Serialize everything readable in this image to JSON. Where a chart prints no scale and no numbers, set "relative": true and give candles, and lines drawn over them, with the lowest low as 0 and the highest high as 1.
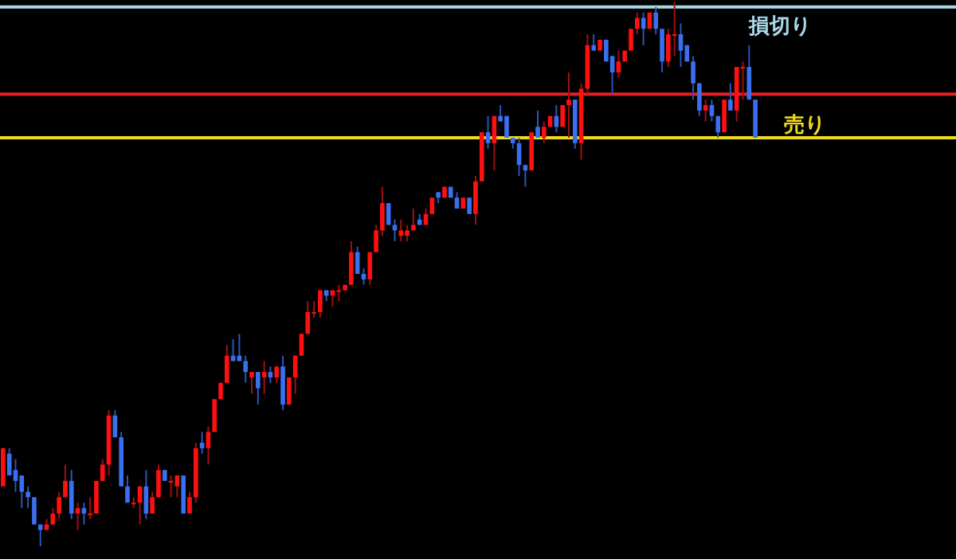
{
  "chart_data": {
    "type": "candlestick",
    "relative": true,
    "categories": [
      null,
      null,
      null,
      null,
      null,
      null,
      null,
      null,
      null,
      null,
      null,
      null,
      null,
      null,
      null,
      null,
      null,
      null,
      null,
      null,
      null,
      null,
      null,
      null,
      null,
      null,
      null,
      null,
      null,
      null,
      null,
      null,
      null,
      null,
      null,
      null,
      null,
      null,
      null,
      null,
      null,
      null,
      null,
      null,
      null,
      null,
      null,
      null,
      null,
      null,
      null,
      null,
      null,
      null,
      null,
      null,
      null,
      null,
      null,
      null,
      null,
      null,
      null,
      null,
      null,
      null,
      null,
      null,
      null,
      null,
      null,
      null,
      null,
      null,
      null,
      null,
      null,
      null,
      null,
      null,
      null,
      null,
      null,
      null,
      null,
      null,
      null,
      null,
      null,
      null,
      null,
      null,
      null,
      null,
      null,
      null,
      null,
      null,
      null,
      null,
      null,
      null,
      null,
      null,
      null,
      null,
      null,
      null,
      null,
      null,
      null,
      null,
      null,
      null,
      null,
      null,
      null,
      null,
      null,
      null,
      null,
      null
    ],
    "ohlc": [
      [
        0.11,
        0.18,
        0.11,
        0.18
      ],
      [
        0.17,
        0.18,
        0.13,
        0.13
      ],
      [
        0.14,
        0.16,
        0.1,
        0.12
      ],
      [
        0.13,
        0.13,
        0.07,
        0.1
      ],
      [
        0.1,
        0.11,
        0.07,
        0.09
      ],
      [
        0.09,
        0.09,
        0.04,
        0.04
      ],
      [
        0.04,
        0.04,
        0.0,
        0.03
      ],
      [
        0.03,
        0.05,
        0.03,
        0.04
      ],
      [
        0.04,
        0.07,
        0.04,
        0.06
      ],
      [
        0.06,
        0.1,
        0.05,
        0.09
      ],
      [
        0.09,
        0.15,
        0.09,
        0.12
      ],
      [
        0.12,
        0.14,
        0.05,
        0.06
      ],
      [
        0.06,
        0.08,
        0.03,
        0.07
      ],
      [
        0.07,
        0.08,
        0.04,
        0.06
      ],
      [
        0.06,
        0.09,
        0.05,
        0.06
      ],
      [
        0.06,
        0.12,
        0.06,
        0.12
      ],
      [
        0.12,
        0.16,
        0.12,
        0.15
      ],
      [
        0.15,
        0.25,
        0.13,
        0.24
      ],
      [
        0.24,
        0.25,
        0.2,
        0.2
      ],
      [
        0.2,
        0.21,
        0.11,
        0.11
      ],
      [
        0.11,
        0.13,
        0.08,
        0.08
      ],
      [
        0.08,
        0.09,
        0.07,
        0.08
      ],
      [
        0.08,
        0.11,
        0.04,
        0.11
      ],
      [
        0.11,
        0.14,
        0.05,
        0.06
      ],
      [
        0.06,
        0.1,
        0.06,
        0.09
      ],
      [
        0.09,
        0.15,
        0.09,
        0.14
      ],
      [
        0.14,
        0.14,
        0.12,
        0.12
      ],
      [
        0.12,
        0.13,
        0.09,
        0.12
      ],
      [
        0.11,
        0.13,
        0.09,
        0.13
      ],
      [
        0.13,
        0.13,
        0.06,
        0.06
      ],
      [
        0.06,
        0.1,
        0.06,
        0.09
      ],
      [
        0.09,
        0.19,
        0.08,
        0.18
      ],
      [
        0.19,
        0.21,
        0.17,
        0.18
      ],
      [
        0.18,
        0.22,
        0.15,
        0.21
      ],
      [
        0.21,
        0.27,
        0.21,
        0.27
      ],
      [
        0.27,
        0.3,
        0.27,
        0.3
      ],
      [
        0.3,
        0.37,
        0.3,
        0.35
      ],
      [
        0.35,
        0.38,
        0.34,
        0.34
      ],
      [
        0.35,
        0.39,
        0.34,
        0.34
      ],
      [
        0.34,
        0.35,
        0.3,
        0.32
      ],
      [
        0.31,
        0.32,
        0.28,
        0.32
      ],
      [
        0.32,
        0.32,
        0.26,
        0.29
      ],
      [
        0.31,
        0.34,
        0.28,
        0.32
      ],
      [
        0.32,
        0.33,
        0.3,
        0.31
      ],
      [
        0.31,
        0.33,
        0.3,
        0.33
      ],
      [
        0.33,
        0.35,
        0.25,
        0.26
      ],
      [
        0.26,
        0.31,
        0.26,
        0.31
      ],
      [
        0.31,
        0.35,
        0.28,
        0.35
      ],
      [
        0.35,
        0.39,
        0.35,
        0.39
      ],
      [
        0.39,
        0.45,
        0.39,
        0.43
      ],
      [
        0.43,
        0.45,
        0.42,
        0.43
      ],
      [
        0.43,
        0.47,
        0.42,
        0.47
      ],
      [
        0.47,
        0.47,
        0.45,
        0.46
      ],
      [
        0.46,
        0.47,
        0.44,
        0.47
      ],
      [
        0.47,
        0.48,
        0.45,
        0.47
      ],
      [
        0.47,
        0.48,
        0.47,
        0.48
      ],
      [
        0.48,
        0.56,
        0.48,
        0.54
      ],
      [
        0.54,
        0.55,
        0.5,
        0.5
      ],
      [
        0.5,
        0.51,
        0.48,
        0.49
      ],
      [
        0.49,
        0.54,
        0.48,
        0.54
      ],
      [
        0.54,
        0.59,
        0.54,
        0.58
      ],
      [
        0.58,
        0.66,
        0.57,
        0.63
      ],
      [
        0.63,
        0.63,
        0.59,
        0.59
      ],
      [
        0.59,
        0.6,
        0.56,
        0.58
      ],
      [
        0.57,
        0.6,
        0.56,
        0.58
      ],
      [
        0.57,
        0.59,
        0.56,
        0.58
      ],
      [
        0.58,
        0.62,
        0.58,
        0.59
      ],
      [
        0.6,
        0.61,
        0.59,
        0.59
      ],
      [
        0.59,
        0.62,
        0.59,
        0.61
      ],
      [
        0.61,
        0.64,
        0.61,
        0.64
      ],
      [
        0.65,
        0.65,
        0.63,
        0.64
      ],
      [
        0.64,
        0.66,
        0.64,
        0.66
      ],
      [
        0.66,
        0.66,
        0.64,
        0.64
      ],
      [
        0.64,
        0.65,
        0.62,
        0.62
      ],
      [
        0.62,
        0.64,
        0.62,
        0.64
      ],
      [
        0.64,
        0.64,
        0.61,
        0.61
      ],
      [
        0.61,
        0.68,
        0.59,
        0.67
      ],
      [
        0.67,
        0.76,
        0.67,
        0.76
      ],
      [
        0.76,
        0.79,
        0.73,
        0.74
      ],
      [
        0.74,
        0.79,
        0.69,
        0.79
      ],
      [
        0.79,
        0.81,
        0.78,
        0.78
      ],
      [
        0.79,
        0.79,
        0.75,
        0.75
      ],
      [
        0.75,
        0.75,
        0.73,
        0.74
      ],
      [
        0.74,
        0.75,
        0.68,
        0.7
      ],
      [
        0.7,
        0.7,
        0.66,
        0.69
      ],
      [
        0.69,
        0.76,
        0.69,
        0.76
      ],
      [
        0.77,
        0.8,
        0.75,
        0.75
      ],
      [
        0.75,
        0.78,
        0.74,
        0.77
      ],
      [
        0.77,
        0.79,
        0.77,
        0.79
      ],
      [
        0.79,
        0.81,
        0.76,
        0.77
      ],
      [
        0.77,
        0.81,
        0.77,
        0.81
      ],
      [
        0.81,
        0.87,
        0.75,
        0.82
      ],
      [
        0.82,
        0.82,
        0.73,
        0.74
      ],
      [
        0.74,
        0.85,
        0.71,
        0.84
      ],
      [
        0.84,
        0.94,
        0.83,
        0.92
      ],
      [
        0.92,
        0.94,
        0.91,
        0.91
      ],
      [
        0.91,
        0.93,
        0.91,
        0.93
      ],
      [
        0.93,
        0.93,
        0.89,
        0.89
      ],
      [
        0.9,
        0.9,
        0.83,
        0.87
      ],
      [
        0.87,
        0.91,
        0.86,
        0.89
      ],
      [
        0.89,
        0.91,
        0.89,
        0.91
      ],
      [
        0.91,
        0.95,
        0.91,
        0.95
      ],
      [
        0.95,
        0.98,
        0.94,
        0.97
      ],
      [
        0.97,
        0.98,
        0.92,
        0.95
      ],
      [
        0.95,
        0.98,
        0.95,
        0.98
      ],
      [
        0.98,
        0.99,
        0.94,
        0.95
      ],
      [
        0.95,
        0.95,
        0.87,
        0.89
      ],
      [
        0.89,
        0.95,
        0.88,
        0.94
      ],
      [
        0.94,
        1.0,
        0.9,
        0.94
      ],
      [
        0.94,
        0.96,
        0.88,
        0.91
      ],
      [
        0.92,
        0.92,
        0.89,
        0.89
      ],
      [
        0.89,
        0.9,
        0.82,
        0.85
      ],
      [
        0.85,
        0.85,
        0.79,
        0.8
      ],
      [
        0.8,
        0.82,
        0.78,
        0.81
      ],
      [
        0.81,
        0.82,
        0.78,
        0.79
      ],
      [
        0.79,
        0.79,
        0.75,
        0.76
      ],
      [
        0.76,
        0.82,
        0.76,
        0.82
      ],
      [
        0.82,
        0.85,
        0.8,
        0.8
      ],
      [
        0.8,
        0.88,
        0.78,
        0.88
      ],
      [
        0.88,
        0.89,
        0.82,
        0.88
      ],
      [
        0.88,
        0.92,
        0.82,
        0.82
      ],
      [
        0.82,
        0.82,
        0.75,
        0.75
      ]
    ],
    "ref_lines": [
      {
        "axis": "y",
        "value": 0.83,
        "color": "#e8202a"
      },
      {
        "axis": "y",
        "value": 0.99,
        "label": "損切り",
        "color": "#a8d8e8"
      },
      {
        "axis": "y",
        "value": 0.75,
        "label": "売り",
        "color": "#f0dc1e"
      }
    ]
  }
}
